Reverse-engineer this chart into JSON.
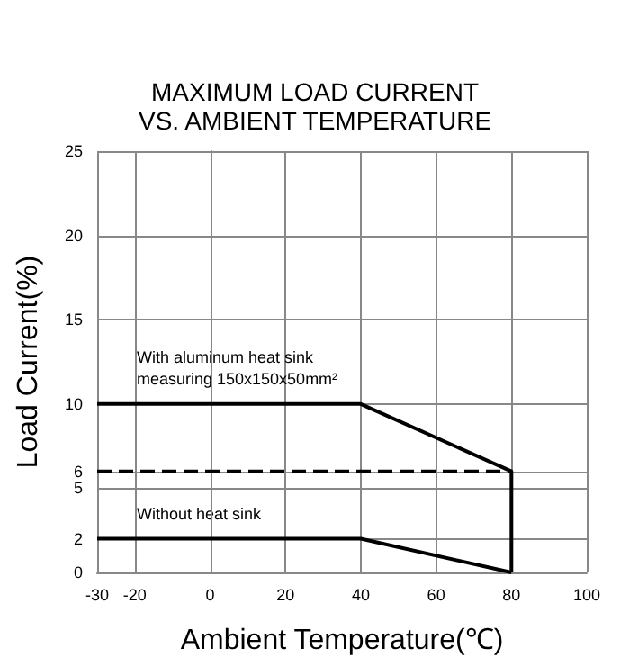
{
  "chart_data": {
    "type": "line",
    "title": "MAXIMUM LOAD CURRENT\nVS. AMBIENT TEMPERATURE",
    "xlabel": "Ambient Temperature(℃)",
    "ylabel": "Load Current(%)",
    "series": [
      {
        "color": "#000000",
        "x": [
          -30,
          40,
          80,
          80
        ],
        "values": [
          10,
          10,
          6,
          0
        ]
      },
      {
        "color": "#000000",
        "x": [
          -30,
          40,
          80
        ],
        "values": [
          2,
          2,
          0
        ]
      },
      {
        "color": "#000000",
        "x": [
          -30,
          80
        ],
        "values": [
          6,
          6
        ],
        "line_style": "dashed"
      }
    ],
    "annotations": [
      "With aluminum heat sink\nmeasuring 150x150x50mm²",
      "Without heat sink"
    ],
    "xlim": [
      -30,
      100
    ],
    "xticks": [
      -30,
      -20,
      0,
      20,
      40,
      60,
      80,
      100
    ],
    "ylim": [
      0,
      25
    ],
    "yticks": [
      0,
      2,
      5,
      6,
      10,
      15,
      20,
      25
    ],
    "grid": true,
    "marker": "none",
    "line_style": "solid"
  }
}
